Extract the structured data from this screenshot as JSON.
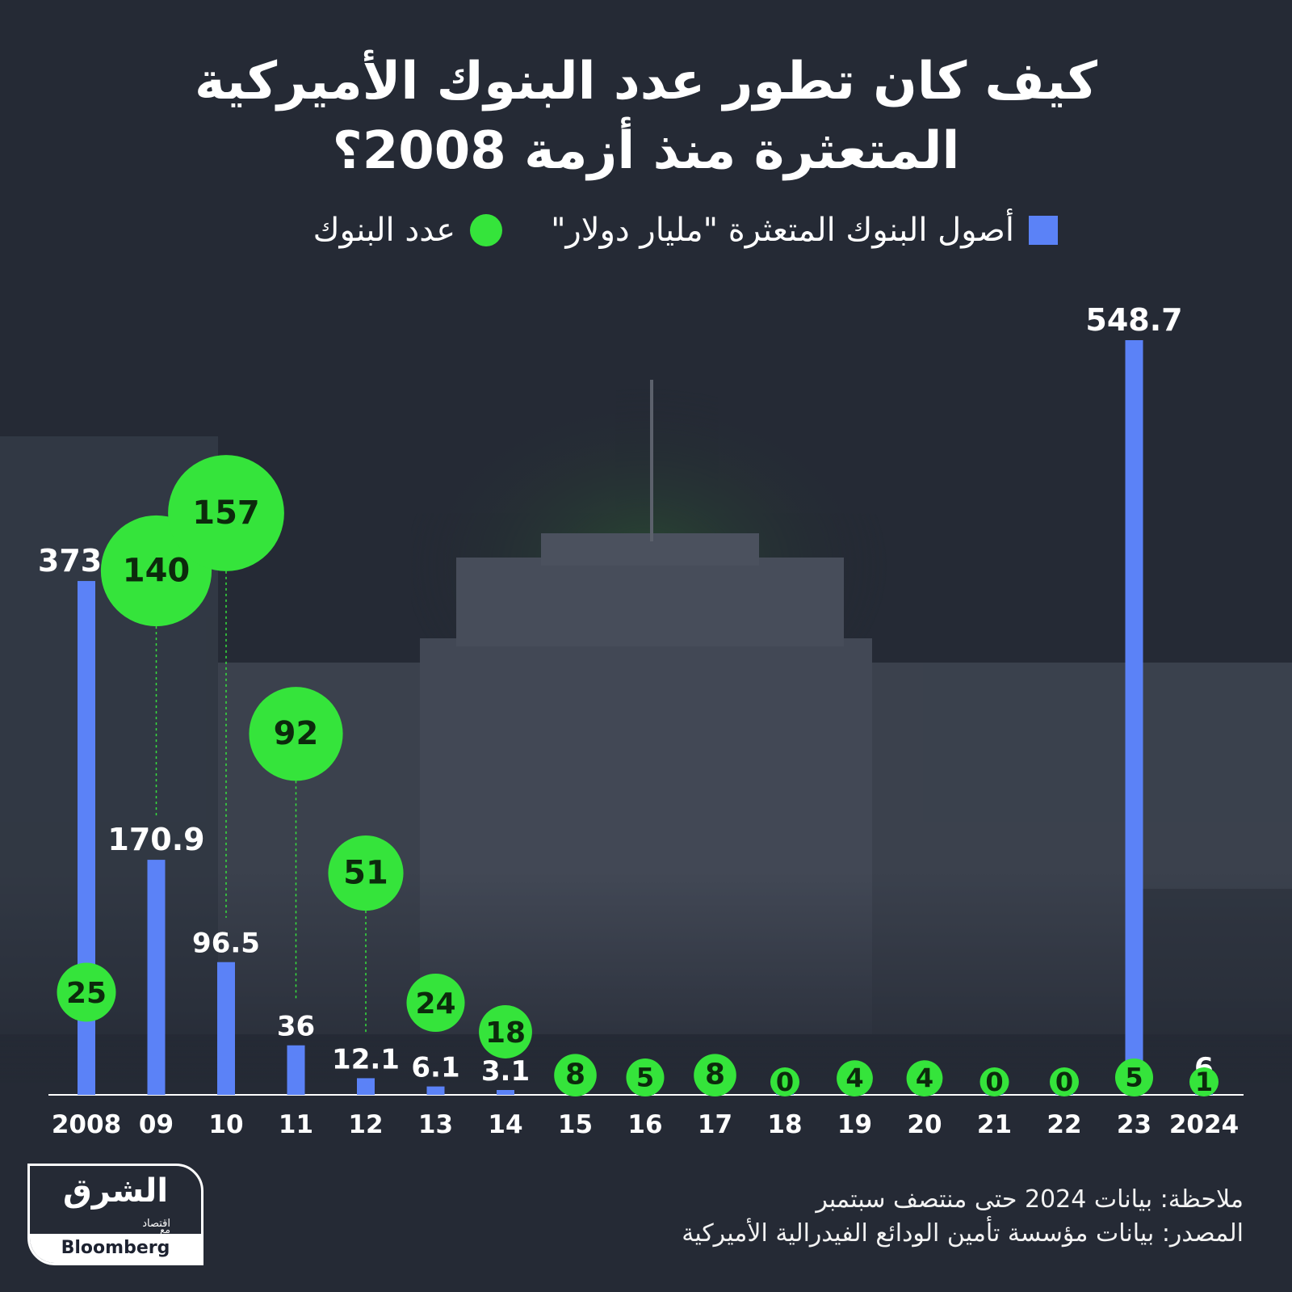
{
  "title_line1": "كيف كان تطور عدد البنوك الأميركية",
  "title_line2": "المتعثرة منذ أزمة 2008؟",
  "legend": {
    "assets_label": "أصول البنوك المتعثرة \"مليار دولار\"",
    "banks_label": "عدد البنوك"
  },
  "note": "ملاحظة: بيانات 2024 حتى منتصف سبتمبر",
  "source": "المصدر: بيانات مؤسسة تأمين الودائع الفيدرالية الأميركية",
  "logo": {
    "arabic": "الشرق",
    "arabic_sub": "اقتصاد",
    "with": "مع",
    "bloomberg": "Bloomberg"
  },
  "colors": {
    "background": "#252a35",
    "bar": "#5b82f7",
    "bubble": "#35e43b",
    "bubble_text": "#0c2a0c"
  },
  "chart_data": {
    "type": "bar",
    "categories": [
      "2008",
      "09",
      "10",
      "11",
      "12",
      "13",
      "14",
      "15",
      "16",
      "17",
      "18",
      "19",
      "20",
      "21",
      "22",
      "23",
      "2024"
    ],
    "series": [
      {
        "name": "أصول البنوك المتعثرة \"مليار دولار\"",
        "kind": "bar",
        "values": [
          373.6,
          170.9,
          96.5,
          36,
          12.1,
          6.1,
          3.1,
          null,
          null,
          null,
          null,
          null,
          null,
          null,
          null,
          548.7,
          6
        ],
        "labels": [
          "373.6",
          "170.9",
          "96.5",
          "36",
          "12.1",
          "6.1",
          "3.1",
          "",
          "",
          "",
          "",
          "",
          "",
          "",
          "",
          "548.7",
          "6"
        ]
      },
      {
        "name": "عدد البنوك",
        "kind": "bubble",
        "values": [
          25,
          140,
          157,
          92,
          51,
          24,
          18,
          8,
          5,
          8,
          0,
          4,
          4,
          0,
          0,
          5,
          1
        ]
      }
    ]
  }
}
